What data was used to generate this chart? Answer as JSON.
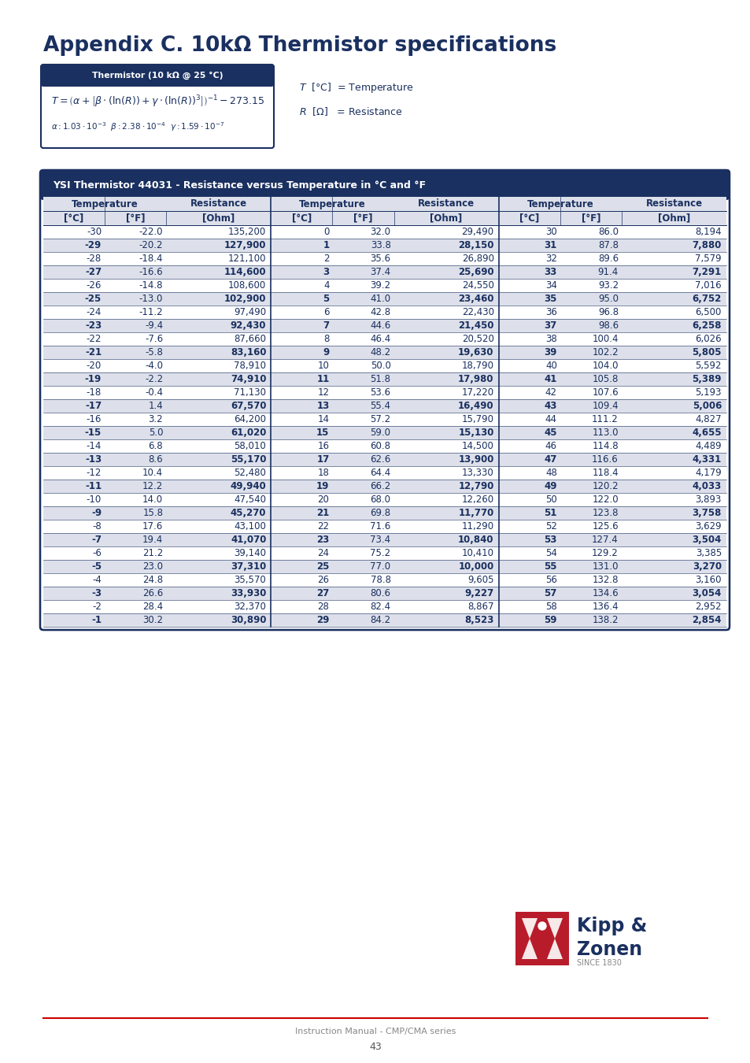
{
  "title": "Appendix C. 10kΩ Thermistor specifications",
  "title_color": "#1a3060",
  "page_bg": "#ffffff",
  "formula_box_title": "Thermistor (10 kΩ @ 25 °C)",
  "formula_box_bg": "#1a3060",
  "table_title": "YSI Thermistor 44031 - Resistance versus Temperature in °C and °F",
  "table_header_bg": "#1a3060",
  "table_subheader_bg": "#dde0ea",
  "table_row_shaded_bg": "#dde0ea",
  "table_row_plain_bg": "#ffffff",
  "table_border_color": "#1a3060",
  "table_text_color": "#1a3060",
  "data_col1": [
    [
      "-30",
      "-22.0",
      "135,200"
    ],
    [
      "-29",
      "-20.2",
      "127,900"
    ],
    [
      "-28",
      "-18.4",
      "121,100"
    ],
    [
      "-27",
      "-16.6",
      "114,600"
    ],
    [
      "-26",
      "-14.8",
      "108,600"
    ],
    [
      "-25",
      "-13.0",
      "102,900"
    ],
    [
      "-24",
      "-11.2",
      "97,490"
    ],
    [
      "-23",
      "-9.4",
      "92,430"
    ],
    [
      "-22",
      "-7.6",
      "87,660"
    ],
    [
      "-21",
      "-5.8",
      "83,160"
    ],
    [
      "-20",
      "-4.0",
      "78,910"
    ],
    [
      "-19",
      "-2.2",
      "74,910"
    ],
    [
      "-18",
      "-0.4",
      "71,130"
    ],
    [
      "-17",
      "1.4",
      "67,570"
    ],
    [
      "-16",
      "3.2",
      "64,200"
    ],
    [
      "-15",
      "5.0",
      "61,020"
    ],
    [
      "-14",
      "6.8",
      "58,010"
    ],
    [
      "-13",
      "8.6",
      "55,170"
    ],
    [
      "-12",
      "10.4",
      "52,480"
    ],
    [
      "-11",
      "12.2",
      "49,940"
    ],
    [
      "-10",
      "14.0",
      "47,540"
    ],
    [
      "-9",
      "15.8",
      "45,270"
    ],
    [
      "-8",
      "17.6",
      "43,100"
    ],
    [
      "-7",
      "19.4",
      "41,070"
    ],
    [
      "-6",
      "21.2",
      "39,140"
    ],
    [
      "-5",
      "23.0",
      "37,310"
    ],
    [
      "-4",
      "24.8",
      "35,570"
    ],
    [
      "-3",
      "26.6",
      "33,930"
    ],
    [
      "-2",
      "28.4",
      "32,370"
    ],
    [
      "-1",
      "30.2",
      "30,890"
    ]
  ],
  "data_col2": [
    [
      "0",
      "32.0",
      "29,490"
    ],
    [
      "1",
      "33.8",
      "28,150"
    ],
    [
      "2",
      "35.6",
      "26,890"
    ],
    [
      "3",
      "37.4",
      "25,690"
    ],
    [
      "4",
      "39.2",
      "24,550"
    ],
    [
      "5",
      "41.0",
      "23,460"
    ],
    [
      "6",
      "42.8",
      "22,430"
    ],
    [
      "7",
      "44.6",
      "21,450"
    ],
    [
      "8",
      "46.4",
      "20,520"
    ],
    [
      "9",
      "48.2",
      "19,630"
    ],
    [
      "10",
      "50.0",
      "18,790"
    ],
    [
      "11",
      "51.8",
      "17,980"
    ],
    [
      "12",
      "53.6",
      "17,220"
    ],
    [
      "13",
      "55.4",
      "16,490"
    ],
    [
      "14",
      "57.2",
      "15,790"
    ],
    [
      "15",
      "59.0",
      "15,130"
    ],
    [
      "16",
      "60.8",
      "14,500"
    ],
    [
      "17",
      "62.6",
      "13,900"
    ],
    [
      "18",
      "64.4",
      "13,330"
    ],
    [
      "19",
      "66.2",
      "12,790"
    ],
    [
      "20",
      "68.0",
      "12,260"
    ],
    [
      "21",
      "69.8",
      "11,770"
    ],
    [
      "22",
      "71.6",
      "11,290"
    ],
    [
      "23",
      "73.4",
      "10,840"
    ],
    [
      "24",
      "75.2",
      "10,410"
    ],
    [
      "25",
      "77.0",
      "10,000"
    ],
    [
      "26",
      "78.8",
      "9,605"
    ],
    [
      "27",
      "80.6",
      "9,227"
    ],
    [
      "28",
      "82.4",
      "8,867"
    ],
    [
      "29",
      "84.2",
      "8,523"
    ]
  ],
  "data_col3": [
    [
      "30",
      "86.0",
      "8,194"
    ],
    [
      "31",
      "87.8",
      "7,880"
    ],
    [
      "32",
      "89.6",
      "7,579"
    ],
    [
      "33",
      "91.4",
      "7,291"
    ],
    [
      "34",
      "93.2",
      "7,016"
    ],
    [
      "35",
      "95.0",
      "6,752"
    ],
    [
      "36",
      "96.8",
      "6,500"
    ],
    [
      "37",
      "98.6",
      "6,258"
    ],
    [
      "38",
      "100.4",
      "6,026"
    ],
    [
      "39",
      "102.2",
      "5,805"
    ],
    [
      "40",
      "104.0",
      "5,592"
    ],
    [
      "41",
      "105.8",
      "5,389"
    ],
    [
      "42",
      "107.6",
      "5,193"
    ],
    [
      "43",
      "109.4",
      "5,006"
    ],
    [
      "44",
      "111.2",
      "4,827"
    ],
    [
      "45",
      "113.0",
      "4,655"
    ],
    [
      "46",
      "114.8",
      "4,489"
    ],
    [
      "47",
      "116.6",
      "4,331"
    ],
    [
      "48",
      "118.4",
      "4,179"
    ],
    [
      "49",
      "120.2",
      "4,033"
    ],
    [
      "50",
      "122.0",
      "3,893"
    ],
    [
      "51",
      "123.8",
      "3,758"
    ],
    [
      "52",
      "125.6",
      "3,629"
    ],
    [
      "53",
      "127.4",
      "3,504"
    ],
    [
      "54",
      "129.2",
      "3,385"
    ],
    [
      "55",
      "131.0",
      "3,270"
    ],
    [
      "56",
      "132.8",
      "3,160"
    ],
    [
      "57",
      "134.6",
      "3,054"
    ],
    [
      "58",
      "136.4",
      "2,952"
    ],
    [
      "59",
      "138.2",
      "2,854"
    ]
  ],
  "footer_text": "Instruction Manual - CMP/CMA series",
  "footer_page": "43",
  "footer_line_color": "#cc0000"
}
